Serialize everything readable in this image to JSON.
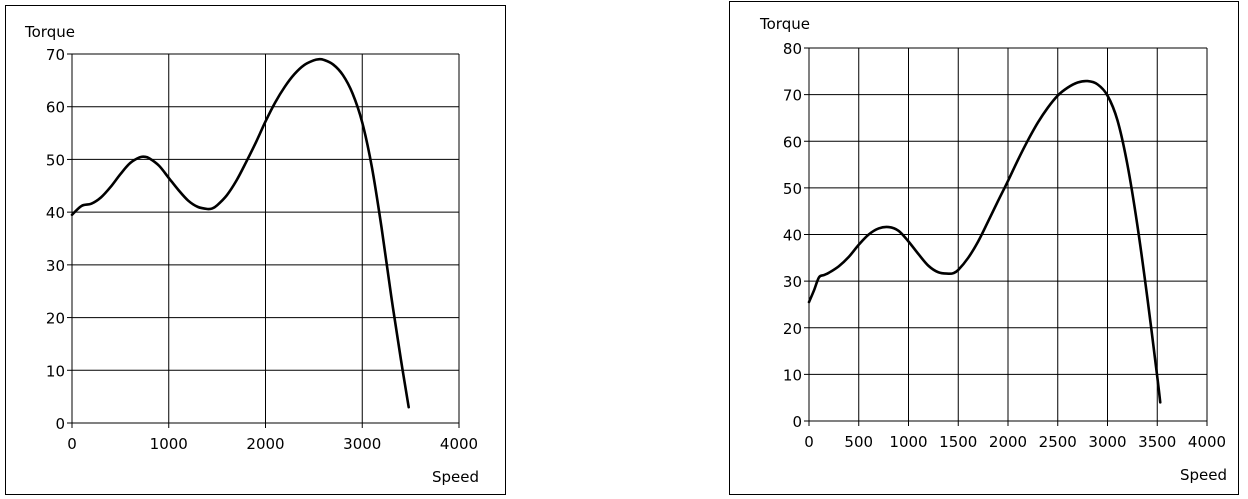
{
  "chart_data": [
    {
      "type": "line",
      "ylabel": "Torque",
      "xlabel": "Speed",
      "xlim": [
        0,
        4000
      ],
      "ylim": [
        0,
        70
      ],
      "xticks": [
        0,
        1000,
        2000,
        3000,
        4000
      ],
      "yticks": [
        0,
        10,
        20,
        30,
        40,
        50,
        60,
        70
      ],
      "xtick_labels": [
        "0",
        "1000",
        "2000",
        "3000",
        "4000"
      ],
      "ytick_labels": [
        "0",
        "10",
        "20",
        "30",
        "40",
        "50",
        "60",
        "70"
      ],
      "grid": true,
      "series": [
        {
          "x": [
            0,
            100,
            200,
            300,
            400,
            500,
            600,
            700,
            750,
            800,
            900,
            1000,
            1100,
            1200,
            1300,
            1400,
            1450,
            1500,
            1600,
            1700,
            1800,
            1900,
            2000,
            2100,
            2200,
            2300,
            2400,
            2500,
            2550,
            2600,
            2700,
            2800,
            2900,
            3000,
            3100,
            3200,
            3300,
            3400,
            3480
          ],
          "y": [
            39.5,
            41.2,
            41.6,
            42.8,
            44.8,
            47.2,
            49.3,
            50.4,
            50.5,
            50.2,
            48.8,
            46.5,
            44.2,
            42.2,
            41.0,
            40.6,
            40.7,
            41.3,
            43.2,
            46.0,
            49.5,
            53.2,
            57.2,
            60.8,
            63.8,
            66.2,
            67.9,
            68.8,
            69.0,
            68.9,
            68.0,
            66.0,
            62.5,
            57.0,
            48.5,
            37.0,
            24.0,
            12.0,
            3.0
          ]
        }
      ]
    },
    {
      "type": "line",
      "ylabel": "Torque",
      "xlabel": "Speed",
      "xlim": [
        0,
        4000
      ],
      "ylim": [
        0,
        80
      ],
      "xticks": [
        0,
        500,
        1000,
        1500,
        2000,
        2500,
        3000,
        3500,
        4000
      ],
      "yticks": [
        0,
        10,
        20,
        30,
        40,
        50,
        60,
        70,
        80
      ],
      "xtick_labels": [
        "0",
        "500",
        "1000",
        "1500",
        "2000",
        "2500",
        "3000",
        "3500",
        "4000"
      ],
      "ytick_labels": [
        "0",
        "10",
        "20",
        "30",
        "40",
        "50",
        "60",
        "70",
        "80"
      ],
      "grid": true,
      "series": [
        {
          "x": [
            0,
            50,
            100,
            150,
            200,
            300,
            400,
            500,
            600,
            700,
            800,
            900,
            1000,
            1100,
            1200,
            1300,
            1400,
            1450,
            1500,
            1600,
            1700,
            1800,
            1900,
            2000,
            2100,
            2200,
            2300,
            2400,
            2500,
            2600,
            2700,
            2800,
            2900,
            3000,
            3100,
            3200,
            3300,
            3400,
            3500,
            3530
          ],
          "y": [
            25.5,
            28.0,
            30.8,
            31.3,
            31.8,
            33.2,
            35.2,
            37.8,
            40.0,
            41.3,
            41.6,
            40.8,
            38.5,
            35.8,
            33.3,
            31.9,
            31.6,
            31.7,
            32.4,
            35.0,
            38.5,
            42.8,
            47.2,
            51.5,
            56.0,
            60.2,
            64.0,
            67.2,
            69.8,
            71.5,
            72.6,
            72.9,
            72.2,
            69.8,
            64.5,
            55.0,
            42.0,
            26.5,
            9.5,
            4.0
          ]
        }
      ]
    }
  ]
}
